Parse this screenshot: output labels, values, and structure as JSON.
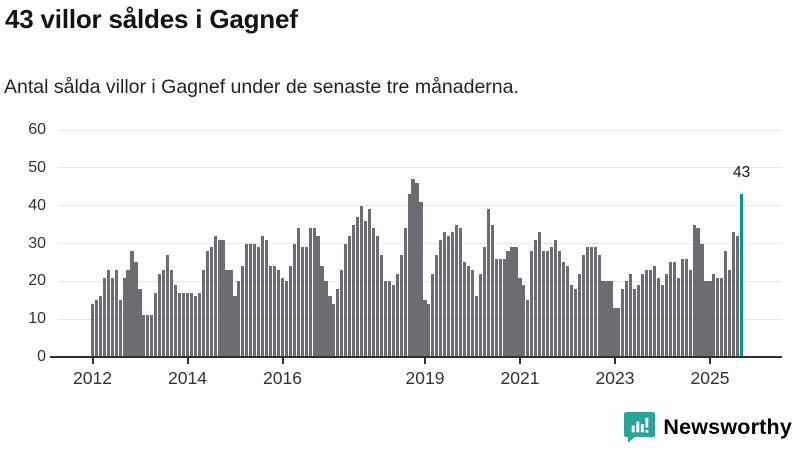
{
  "header": {
    "title": "43 villor såldes i Gagnef",
    "subtitle": "Antal sålda villor i Gagnef under de senaste tre månaderna."
  },
  "chart_data": {
    "type": "bar",
    "title": "43 villor såldes i Gagnef",
    "subtitle": "Antal sålda villor i Gagnef under de senaste tre månaderna.",
    "x_start": "2012-01",
    "frequency": "monthly",
    "unit": "sålda villor (rullande tre månader)",
    "values": [
      14,
      15,
      16,
      21,
      23,
      21,
      23,
      15,
      21,
      23,
      28,
      25,
      18,
      11,
      11,
      11,
      17,
      22,
      23,
      27,
      23,
      19,
      17,
      17,
      17,
      17,
      16,
      17,
      23,
      28,
      29,
      32,
      31,
      31,
      23,
      23,
      16,
      20,
      24,
      30,
      30,
      30,
      29,
      32,
      31,
      24,
      24,
      23,
      21,
      20,
      24,
      30,
      34,
      29,
      29,
      34,
      34,
      32,
      24,
      20,
      16,
      14,
      18,
      23,
      30,
      32,
      35,
      37,
      40,
      36,
      39,
      34,
      32,
      27,
      20,
      20,
      19,
      22,
      27,
      34,
      43,
      47,
      46,
      41,
      15,
      14,
      22,
      27,
      31,
      33,
      32,
      33,
      35,
      34,
      25,
      24,
      23,
      16,
      22,
      29,
      39,
      35,
      26,
      26,
      26,
      28,
      29,
      29,
      21,
      19,
      15,
      28,
      31,
      33,
      28,
      28,
      29,
      31,
      28,
      25,
      24,
      19,
      18,
      22,
      27,
      29,
      29,
      29,
      27,
      20,
      20,
      20,
      13,
      13,
      18,
      20,
      22,
      18,
      19,
      22,
      23,
      23,
      24,
      21,
      19,
      22,
      25,
      25,
      21,
      26,
      26,
      23,
      35,
      34,
      30,
      20,
      20,
      22,
      21,
      21,
      28,
      23,
      33,
      32,
      43
    ],
    "highlight": {
      "index": 164,
      "value": 43,
      "annotation_label": "43"
    },
    "y_ticks": [
      0,
      10,
      20,
      30,
      40,
      50,
      60
    ],
    "ylim": [
      0,
      60
    ],
    "x_tick_labels": [
      {
        "index": 0,
        "label": "2012"
      },
      {
        "index": 24,
        "label": "2014"
      },
      {
        "index": 48,
        "label": "2016"
      },
      {
        "index": 84,
        "label": "2019"
      },
      {
        "index": 108,
        "label": "2021"
      },
      {
        "index": 132,
        "label": "2023"
      },
      {
        "index": 156,
        "label": "2025"
      }
    ],
    "grid": "horizontal",
    "legend": "none",
    "colors": {
      "bar": "#6f6b72",
      "highlight": "#00968f",
      "gridline": "#e7e7e7",
      "axis": "#2f2f2f",
      "tick_text": "#333333"
    }
  },
  "footer": {
    "brand": "Newsworthy",
    "brand_color": "#2ba39b",
    "logo_icon": "bar-chart-speech-bubble-icon"
  }
}
